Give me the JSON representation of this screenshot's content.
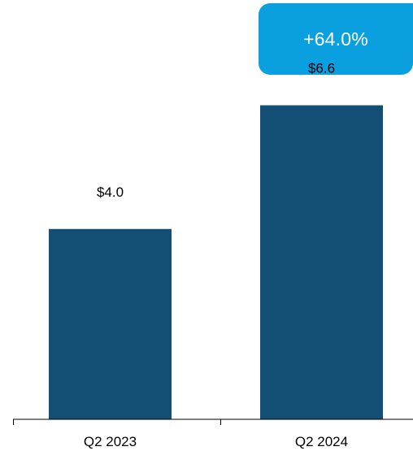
{
  "badge": {
    "text": "+64.0%",
    "color": "#0aa0e0",
    "text_color": "#ffffff"
  },
  "chart_data": {
    "type": "bar",
    "categories": [
      "Q2 2023",
      "Q2 2024"
    ],
    "values": [
      4.0,
      6.6
    ],
    "value_labels": [
      "$4.0",
      "$6.6"
    ],
    "title": "",
    "xlabel": "",
    "ylabel": "",
    "ylim": [
      0,
      8.3
    ],
    "grid": false,
    "legend": "none",
    "bar_color": "#134f74",
    "axis_color": "#000000"
  }
}
